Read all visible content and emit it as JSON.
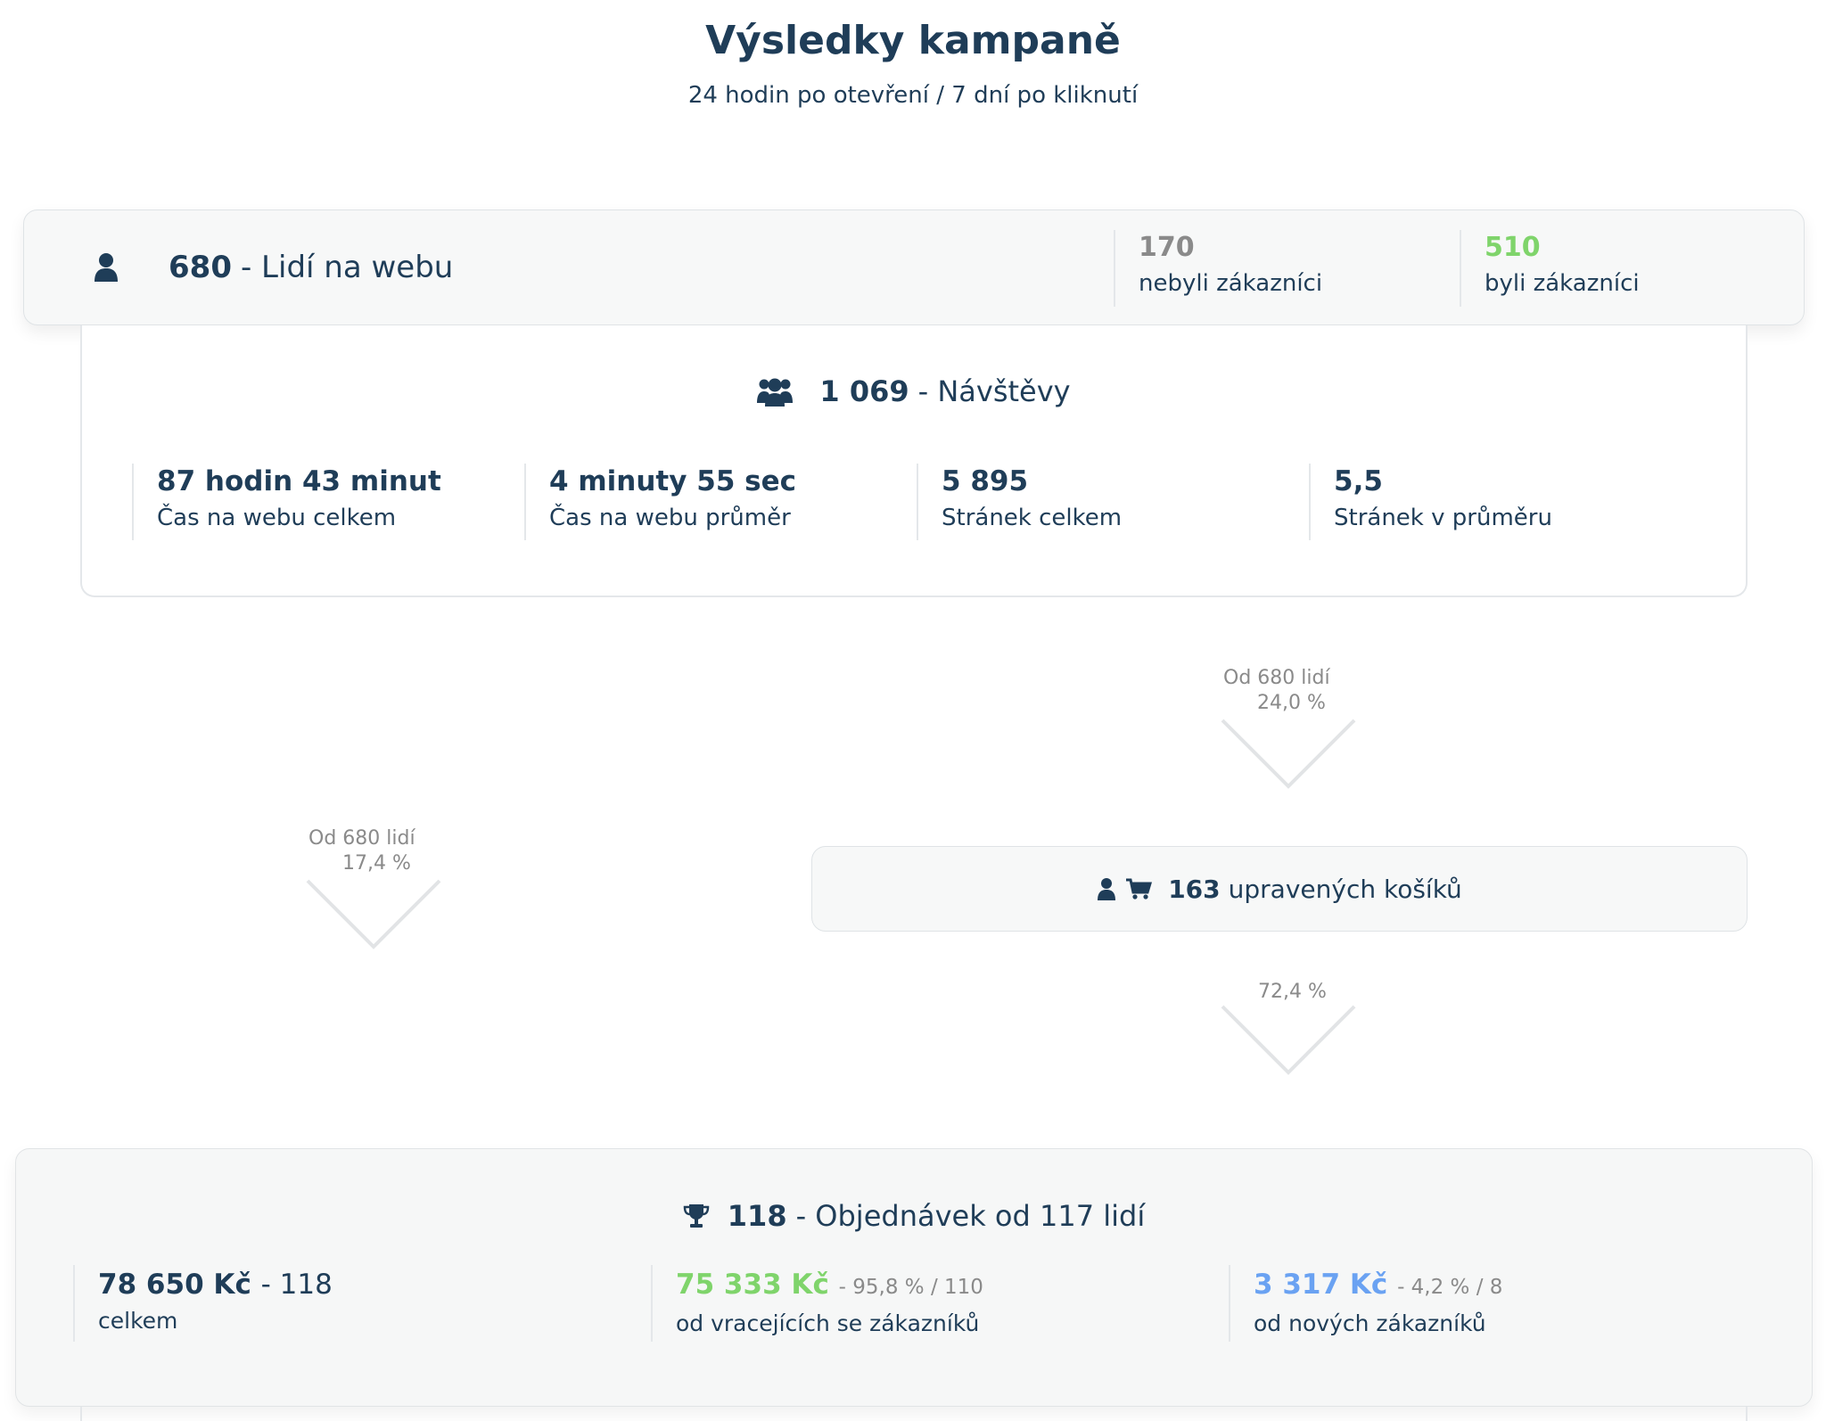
{
  "header": {
    "title": "Výsledky kampaně",
    "subtitle": "24 hodin po otevření / 7 dní po kliknutí"
  },
  "people": {
    "icon": "user-icon",
    "count": "680",
    "label": "- Lidí na webu",
    "not_customers_value": "170",
    "not_customers_label": "nebyli zákazníci",
    "customers_value": "510",
    "customers_label": "byli zákazníci",
    "colors": {
      "not_customers": "#8a8a8a",
      "customers": "#7fd46b"
    }
  },
  "visits": {
    "icon": "users-group-icon",
    "count": "1 069",
    "label": "- Návštěvy",
    "stats": [
      {
        "value": "87 hodin 43 minut",
        "label": "Čas na webu celkem"
      },
      {
        "value": "4 minuty 55 sec",
        "label": "Čas na webu průměr"
      },
      {
        "value": "5 895",
        "label": "Stránek celkem"
      },
      {
        "value": "5,5",
        "label": "Stránek v průměru"
      }
    ]
  },
  "funnel": {
    "left_from": "Od 680 lidí",
    "left_pct": "17,4 %",
    "right_from": "Od 680 lidí",
    "right_pct": "24,0 %",
    "cart_to_orders_pct": "72,4 %"
  },
  "cart": {
    "icons": [
      "user-icon",
      "cart-icon"
    ],
    "count": "163",
    "label": "upravených košíků"
  },
  "orders": {
    "icon": "trophy-icon",
    "count": "118",
    "label": "- Objednávek od 117 lidí",
    "total": {
      "value": "78 650 Kč",
      "count": "- 118",
      "label": "celkem"
    },
    "returning": {
      "value": "75 333 Kč",
      "detail": "- 95,8 % / 110",
      "label": "od vracejících se zákazníků"
    },
    "new": {
      "value": "3 317 Kč",
      "detail": "- 4,2 % / 8",
      "label": "od nových zákazníků"
    },
    "colors": {
      "returning": "#7fd46b",
      "new": "#6aa2f2"
    }
  }
}
